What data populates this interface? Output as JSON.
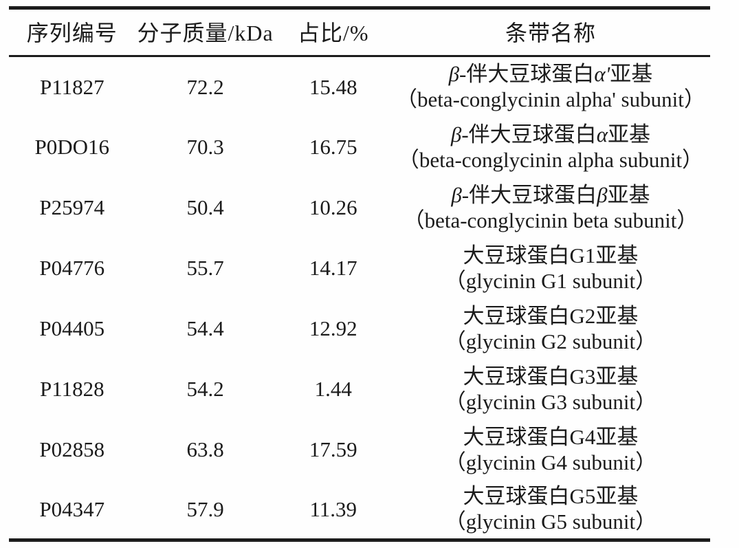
{
  "table": {
    "columns": [
      {
        "key": "sequence_id",
        "label": "序列编号"
      },
      {
        "key": "molecular_mass",
        "label": "分子质量/kDa"
      },
      {
        "key": "percentage",
        "label": "占比/%"
      },
      {
        "key": "band_name",
        "label": "条带名称"
      }
    ],
    "rows": [
      {
        "sequence_id": "P11827",
        "molecular_mass_kda": "72.2",
        "percentage": "15.48",
        "band_name_zh": "β-伴大豆球蛋白α'亚基",
        "band_name_en": "（beta-conglycinin alpha' subunit）"
      },
      {
        "sequence_id": "P0DO16",
        "molecular_mass_kda": "70.3",
        "percentage": "16.75",
        "band_name_zh": "β-伴大豆球蛋白α亚基",
        "band_name_en": "（beta-conglycinin alpha subunit）"
      },
      {
        "sequence_id": "P25974",
        "molecular_mass_kda": "50.4",
        "percentage": "10.26",
        "band_name_zh": "β-伴大豆球蛋白β亚基",
        "band_name_en": "（beta-conglycinin beta subunit）"
      },
      {
        "sequence_id": "P04776",
        "molecular_mass_kda": "55.7",
        "percentage": "14.17",
        "band_name_zh": "大豆球蛋白G1亚基",
        "band_name_en": "（glycinin G1 subunit）"
      },
      {
        "sequence_id": "P04405",
        "molecular_mass_kda": "54.4",
        "percentage": "12.92",
        "band_name_zh": "大豆球蛋白G2亚基",
        "band_name_en": "（glycinin G2 subunit）"
      },
      {
        "sequence_id": "P11828",
        "molecular_mass_kda": "54.2",
        "percentage": "1.44",
        "band_name_zh": "大豆球蛋白G3亚基",
        "band_name_en": "（glycinin G3 subunit）"
      },
      {
        "sequence_id": "P02858",
        "molecular_mass_kda": "63.8",
        "percentage": "17.59",
        "band_name_zh": "大豆球蛋白G4亚基",
        "band_name_en": "（glycinin G4 subunit）"
      },
      {
        "sequence_id": "P04347",
        "molecular_mass_kda": "57.9",
        "percentage": "11.39",
        "band_name_zh": "大豆球蛋白G5亚基",
        "band_name_en": "（glycinin G5 subunit）"
      }
    ],
    "style": {
      "text_color": "#1b1b1b",
      "rule_color": "#1c1c1c",
      "background": "#fefefe"
    }
  }
}
